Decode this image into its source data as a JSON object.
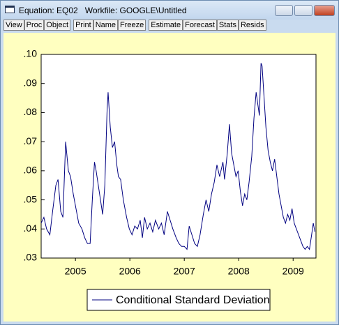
{
  "window": {
    "title": "Equation: EQ02   Workfile: GOOGLE\\Untitled",
    "toolbar": [
      [
        "View",
        "Proc",
        "Object"
      ],
      [
        "Print",
        "Name",
        "Freeze"
      ],
      [
        "Estimate",
        "Forecast",
        "Stats",
        "Resids"
      ]
    ]
  },
  "chart_data": {
    "type": "line",
    "x": [
      2004.87,
      2004.92,
      2004.97,
      2005.03,
      2005.08,
      2005.14,
      2005.18,
      2005.23,
      2005.27,
      2005.32,
      2005.37,
      2005.41,
      2005.46,
      2005.51,
      2005.56,
      2005.62,
      2005.67,
      2005.72,
      2005.77,
      2005.81,
      2005.85,
      2005.88,
      2005.92,
      2005.96,
      2006.0,
      2006.04,
      2006.08,
      2006.1,
      2006.14,
      2006.18,
      2006.22,
      2006.26,
      2006.29,
      2006.33,
      2006.38,
      2006.44,
      2006.49,
      2006.54,
      2006.59,
      2006.64,
      2006.69,
      2006.73,
      2006.77,
      2006.82,
      2006.87,
      2006.92,
      2006.97,
      2007.03,
      2007.08,
      2007.13,
      2007.19,
      2007.24,
      2007.29,
      2007.35,
      2007.4,
      2007.45,
      2007.5,
      2007.55,
      2007.59,
      2007.64,
      2007.69,
      2007.74,
      2007.79,
      2007.85,
      2007.9,
      2007.95,
      2008.0,
      2008.05,
      2008.1,
      2008.15,
      2008.21,
      2008.24,
      2008.29,
      2008.33,
      2008.37,
      2008.41,
      2008.45,
      2008.49,
      2008.53,
      2008.57,
      2008.61,
      2008.65,
      2008.69,
      2008.74,
      2008.78,
      2008.82,
      2008.85,
      2008.88,
      2008.91,
      2008.93,
      2008.96,
      2009.0,
      2009.04,
      2009.08,
      2009.12,
      2009.16,
      2009.2,
      2009.24,
      2009.28,
      2009.32,
      2009.36,
      2009.4,
      2009.44,
      2009.48,
      2009.52,
      2009.56,
      2009.6,
      2009.64,
      2009.68,
      2009.72,
      2009.76,
      2009.8,
      2009.84,
      2009.87,
      2009.9
    ],
    "series": [
      {
        "name": "Conditional Standard Deviation",
        "color": "#000080",
        "values": [
          0.042,
          0.044,
          0.04,
          0.038,
          0.046,
          0.055,
          0.057,
          0.046,
          0.044,
          0.07,
          0.06,
          0.058,
          0.052,
          0.047,
          0.042,
          0.04,
          0.037,
          0.035,
          0.035,
          0.05,
          0.063,
          0.06,
          0.055,
          0.05,
          0.045,
          0.055,
          0.08,
          0.087,
          0.075,
          0.068,
          0.07,
          0.062,
          0.058,
          0.057,
          0.05,
          0.044,
          0.04,
          0.038,
          0.041,
          0.04,
          0.043,
          0.037,
          0.044,
          0.04,
          0.042,
          0.039,
          0.043,
          0.04,
          0.042,
          0.038,
          0.046,
          0.043,
          0.04,
          0.037,
          0.035,
          0.034,
          0.034,
          0.033,
          0.041,
          0.038,
          0.035,
          0.034,
          0.038,
          0.045,
          0.05,
          0.046,
          0.052,
          0.056,
          0.062,
          0.058,
          0.063,
          0.057,
          0.066,
          0.076,
          0.066,
          0.062,
          0.058,
          0.06,
          0.053,
          0.048,
          0.052,
          0.05,
          0.056,
          0.065,
          0.078,
          0.087,
          0.083,
          0.079,
          0.097,
          0.096,
          0.087,
          0.075,
          0.067,
          0.063,
          0.06,
          0.064,
          0.058,
          0.052,
          0.048,
          0.044,
          0.042,
          0.045,
          0.043,
          0.047,
          0.042,
          0.04,
          0.038,
          0.036,
          0.034,
          0.033,
          0.034,
          0.033,
          0.038,
          0.042,
          0.039
        ]
      }
    ],
    "xlim": [
      2004.87,
      2009.92
    ],
    "xticks": [
      {
        "value": 2005.5,
        "label": "2005"
      },
      {
        "value": 2006.5,
        "label": "2006"
      },
      {
        "value": 2007.5,
        "label": "2007"
      },
      {
        "value": 2008.5,
        "label": "2008"
      },
      {
        "value": 2009.5,
        "label": "2009"
      }
    ],
    "ylim": [
      0.03,
      0.1
    ],
    "yticks": [
      {
        "value": 0.03,
        "label": ".03"
      },
      {
        "value": 0.04,
        "label": ".04"
      },
      {
        "value": 0.05,
        "label": ".05"
      },
      {
        "value": 0.06,
        "label": ".06"
      },
      {
        "value": 0.07,
        "label": ".07"
      },
      {
        "value": 0.08,
        "label": ".08"
      },
      {
        "value": 0.09,
        "label": ".09"
      },
      {
        "value": 0.1,
        "label": ".10"
      }
    ],
    "grid": false
  }
}
